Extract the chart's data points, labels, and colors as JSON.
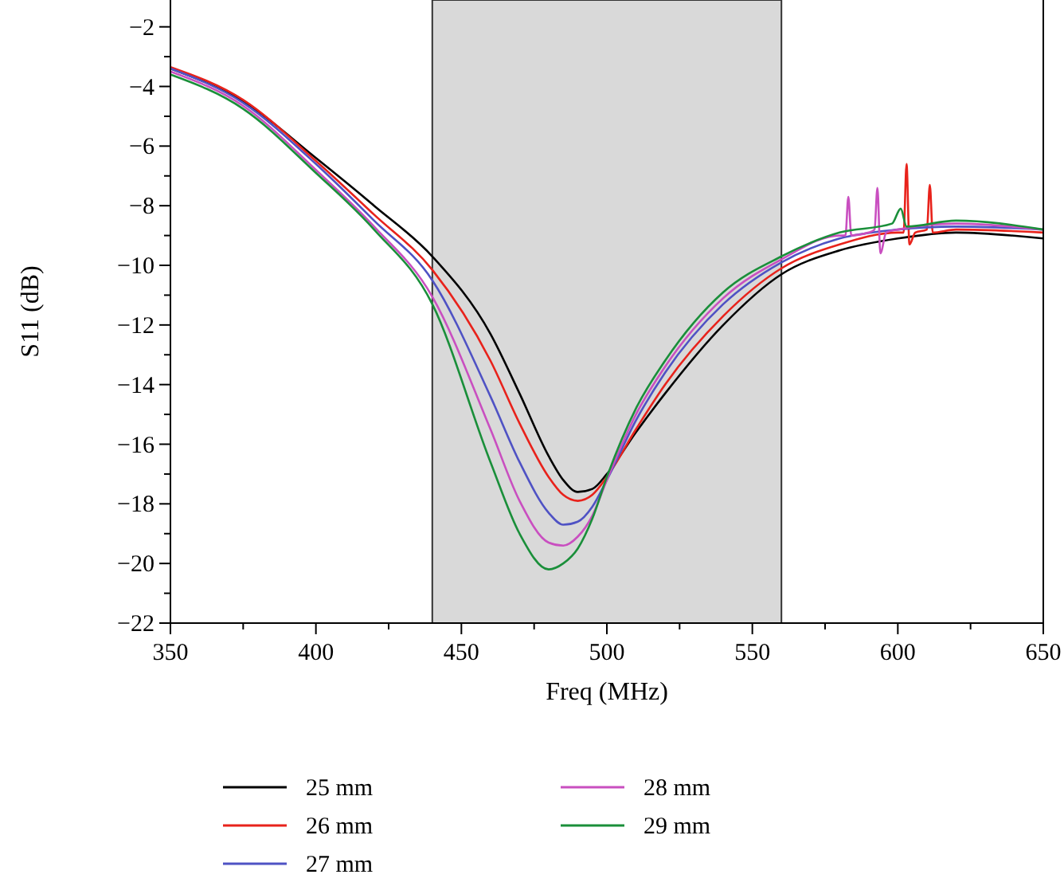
{
  "chart_data": {
    "type": "line",
    "xlabel": "Freq (MHz)",
    "ylabel": "S11 (dB)",
    "xlim": [
      350,
      650
    ],
    "xticks": [
      350,
      {
        "value": 375,
        "label": null
      },
      400,
      {
        "value": 425,
        "label": null
      },
      450,
      {
        "value": 475,
        "label": null
      },
      500,
      {
        "value": 525,
        "label": null
      },
      550,
      {
        "value": 575,
        "label": null
      },
      600,
      {
        "value": 625,
        "label": null
      },
      650
    ],
    "ylim": [
      -22,
      -1.1
    ],
    "yticks": [
      -22,
      {
        "value": -21,
        "label": null
      },
      -20,
      {
        "value": -19,
        "label": null
      },
      -18,
      {
        "value": -17,
        "label": null
      },
      -16,
      {
        "value": -15,
        "label": null
      },
      -14,
      {
        "value": -13,
        "label": null
      },
      -12,
      {
        "value": -11,
        "label": null
      },
      -10,
      {
        "value": -9,
        "label": null
      },
      -8,
      {
        "value": -7,
        "label": null
      },
      -6,
      {
        "value": -5,
        "label": null
      },
      -4,
      {
        "value": -3,
        "label": null
      },
      -2
    ],
    "grid": false,
    "legend": "bottom",
    "marker": "none",
    "line_style": "solid",
    "bands": [
      {
        "axis": "x",
        "from": 440,
        "to": 560,
        "color": "#d9d9d9"
      }
    ],
    "series": [
      {
        "name": "25 mm",
        "color": "#000000",
        "x": [
          350,
          375,
          400,
          420,
          440,
          460,
          470,
          480,
          485,
          490,
          495,
          500,
          510,
          520,
          540,
          560,
          580,
          600,
          620,
          650
        ],
        "values": [
          -3.4,
          -4.5,
          -6.4,
          -8.0,
          -9.7,
          -12.3,
          -14.3,
          -16.4,
          -17.2,
          -17.6,
          -17.5,
          -17.0,
          -15.6,
          -14.3,
          -12.0,
          -10.3,
          -9.5,
          -9.1,
          -8.9,
          -9.1
        ]
      },
      {
        "name": "26 mm",
        "color": "#e8221b",
        "x": [
          350,
          375,
          400,
          420,
          440,
          460,
          470,
          480,
          485,
          490,
          495,
          500,
          510,
          520,
          540,
          560,
          580,
          600,
          602,
          603,
          604,
          606,
          610,
          611,
          612,
          620,
          650
        ],
        "values": [
          -3.35,
          -4.45,
          -6.5,
          -8.3,
          -10.15,
          -13.2,
          -15.3,
          -17.1,
          -17.7,
          -17.9,
          -17.7,
          -17.1,
          -15.5,
          -14.0,
          -11.7,
          -10.1,
          -9.3,
          -8.9,
          -8.9,
          -6.6,
          -9.3,
          -8.9,
          -8.8,
          -7.3,
          -8.9,
          -8.8,
          -8.9
        ]
      },
      {
        "name": "27 mm",
        "color": "#4f52c4",
        "x": [
          350,
          375,
          400,
          420,
          440,
          460,
          470,
          480,
          485,
          490,
          495,
          500,
          510,
          520,
          540,
          560,
          580,
          600,
          620,
          650
        ],
        "values": [
          -3.4,
          -4.55,
          -6.6,
          -8.5,
          -10.5,
          -14.4,
          -16.6,
          -18.3,
          -18.7,
          -18.6,
          -18.1,
          -17.2,
          -15.2,
          -13.6,
          -11.3,
          -9.9,
          -9.1,
          -8.8,
          -8.7,
          -8.8
        ]
      },
      {
        "name": "28 mm",
        "color": "#c94fc0",
        "x": [
          350,
          375,
          400,
          420,
          440,
          460,
          470,
          480,
          485,
          490,
          495,
          500,
          510,
          520,
          540,
          560,
          580,
          582,
          583,
          584,
          590,
          592,
          593,
          594,
          596,
          600,
          620,
          650
        ],
        "values": [
          -3.5,
          -4.65,
          -6.8,
          -8.7,
          -11.05,
          -15.5,
          -17.9,
          -19.3,
          -19.4,
          -19.1,
          -18.4,
          -17.2,
          -15.0,
          -13.4,
          -11.1,
          -9.8,
          -9.0,
          -9.0,
          -7.7,
          -9.0,
          -8.9,
          -8.8,
          -7.4,
          -9.6,
          -8.9,
          -8.8,
          -8.6,
          -8.8
        ]
      },
      {
        "name": "29 mm",
        "color": "#1a8f3a",
        "x": [
          350,
          375,
          400,
          420,
          440,
          460,
          470,
          480,
          485,
          490,
          495,
          500,
          510,
          520,
          540,
          560,
          580,
          598,
          601,
          603,
          620,
          650
        ],
        "values": [
          -3.6,
          -4.75,
          -6.9,
          -8.8,
          -11.3,
          -16.6,
          -19.0,
          -20.2,
          -20.0,
          -19.5,
          -18.5,
          -17.1,
          -14.8,
          -13.2,
          -10.9,
          -9.7,
          -8.9,
          -8.6,
          -8.1,
          -8.7,
          -8.5,
          -8.8
        ]
      }
    ]
  }
}
